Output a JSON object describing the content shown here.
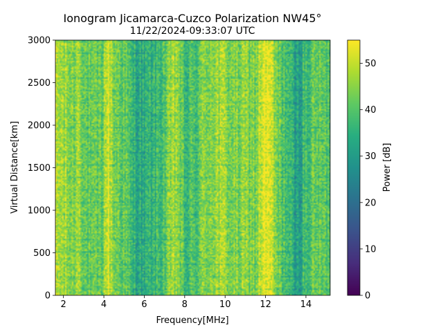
{
  "chart_data": {
    "type": "heatmap",
    "title": "Ionogram Jicamarca-Cuzco Polarization NW45°",
    "subtitle": "11/22/2024-09:33:07 UTC",
    "xlabel": "Frequency[MHz]",
    "ylabel": "Virtual Distance[km]",
    "xlim": [
      1.6,
      15.2
    ],
    "ylim": [
      0,
      3000
    ],
    "xticks": [
      2,
      4,
      6,
      8,
      10,
      12,
      14
    ],
    "yticks": [
      0,
      500,
      1000,
      1500,
      2000,
      2500,
      3000
    ],
    "colorbar": {
      "label": "Power [dB]",
      "ticks": [
        0,
        10,
        20,
        30,
        40,
        50
      ],
      "range": [
        0,
        55
      ],
      "colormap": "viridis"
    },
    "frequency_profile_db": [
      {
        "f": 1.6,
        "db": 48
      },
      {
        "f": 2.0,
        "db": 47
      },
      {
        "f": 2.5,
        "db": 44
      },
      {
        "f": 2.8,
        "db": 50
      },
      {
        "f": 3.0,
        "db": 42
      },
      {
        "f": 3.5,
        "db": 40
      },
      {
        "f": 3.9,
        "db": 42
      },
      {
        "f": 4.2,
        "db": 53
      },
      {
        "f": 4.5,
        "db": 44
      },
      {
        "f": 5.0,
        "db": 42
      },
      {
        "f": 5.4,
        "db": 36
      },
      {
        "f": 5.9,
        "db": 33
      },
      {
        "f": 6.3,
        "db": 35
      },
      {
        "f": 6.8,
        "db": 38
      },
      {
        "f": 7.3,
        "db": 44
      },
      {
        "f": 7.6,
        "db": 48
      },
      {
        "f": 8.0,
        "db": 37
      },
      {
        "f": 8.5,
        "db": 39
      },
      {
        "f": 9.0,
        "db": 45
      },
      {
        "f": 9.5,
        "db": 47
      },
      {
        "f": 10.0,
        "db": 46
      },
      {
        "f": 10.5,
        "db": 44
      },
      {
        "f": 11.0,
        "db": 45
      },
      {
        "f": 11.5,
        "db": 44
      },
      {
        "f": 11.9,
        "db": 53
      },
      {
        "f": 12.2,
        "db": 52
      },
      {
        "f": 12.6,
        "db": 42
      },
      {
        "f": 13.0,
        "db": 40
      },
      {
        "f": 13.5,
        "db": 30
      },
      {
        "f": 14.0,
        "db": 38
      },
      {
        "f": 14.5,
        "db": 42
      },
      {
        "f": 15.0,
        "db": 40
      },
      {
        "f": 15.2,
        "db": 40
      }
    ]
  }
}
